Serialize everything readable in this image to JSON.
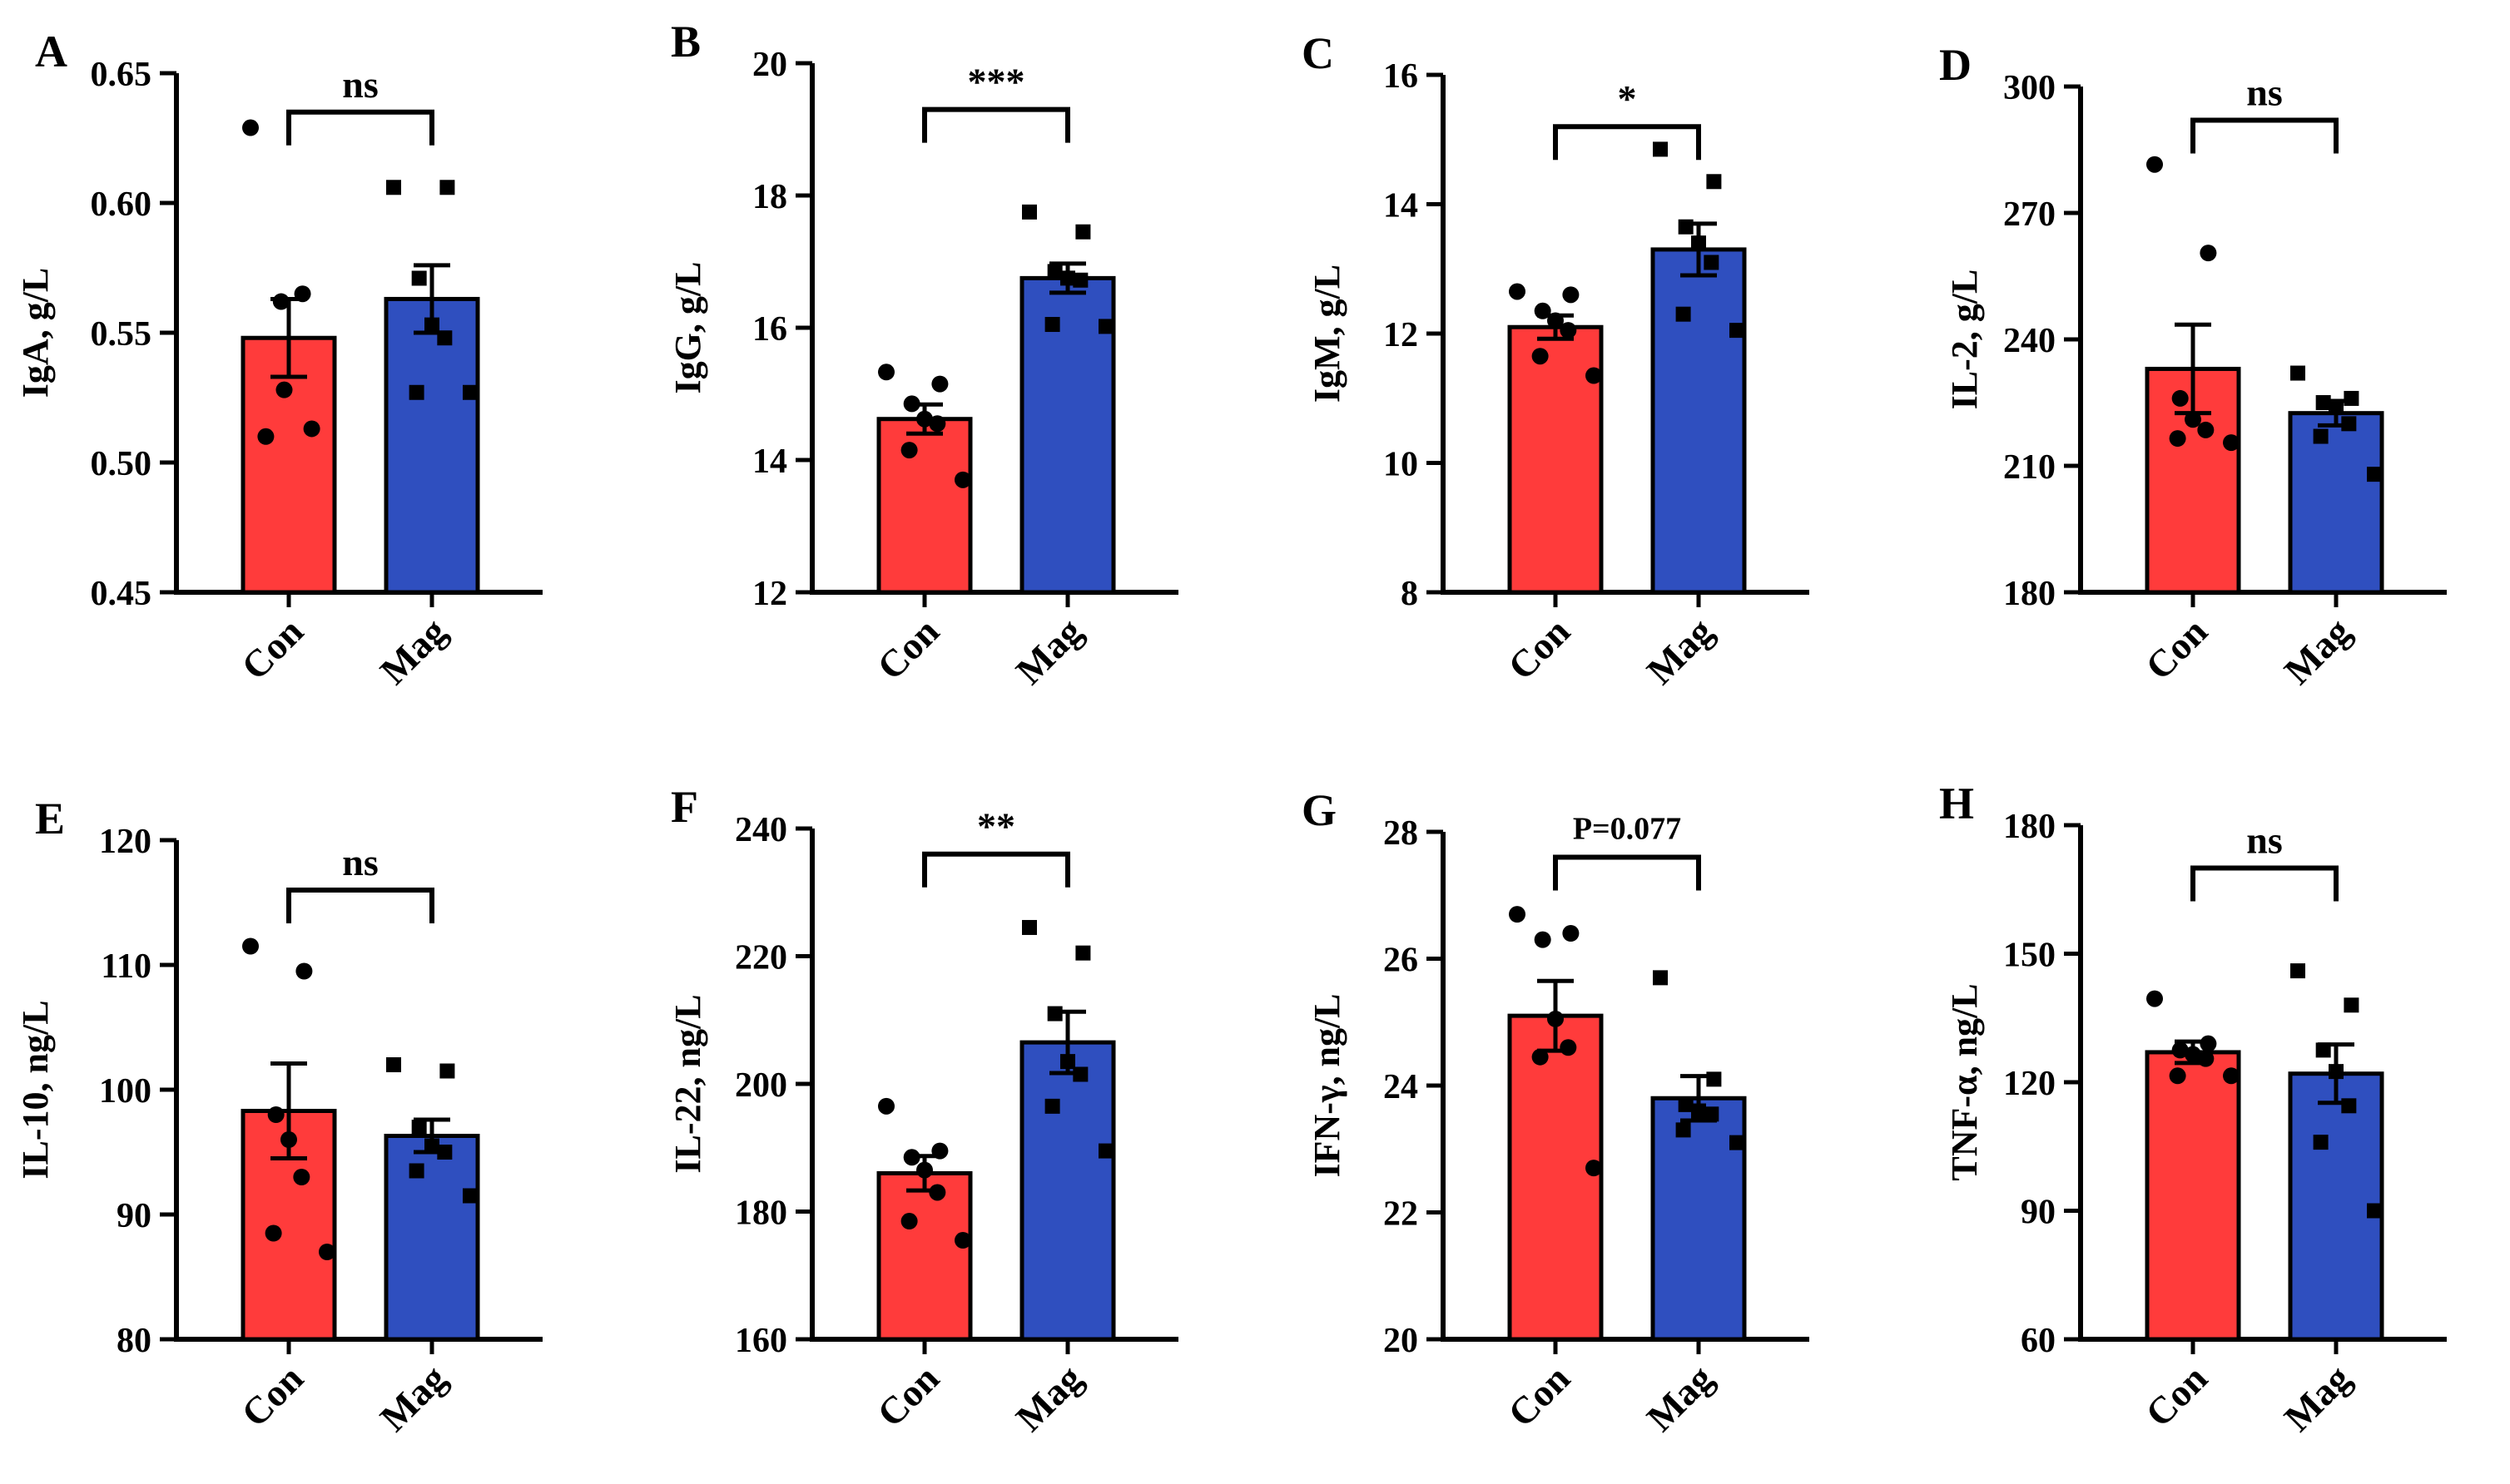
{
  "colors": {
    "con": "#FF3B3B",
    "mag": "#2F4FBF",
    "axis": "#000000"
  },
  "chart_data": [
    {
      "type": "bar",
      "panel": "A",
      "title": "",
      "ylabel": "IgA, g/L",
      "categories": [
        "Con",
        "Mag"
      ],
      "values": [
        0.548,
        0.563
      ],
      "sem": [
        0.015,
        0.013
      ],
      "points": [
        [
          0.629,
          0.565,
          0.562,
          0.528,
          0.513,
          0.51
        ],
        [
          0.606,
          0.606,
          0.571,
          0.553,
          0.548,
          0.527,
          0.527
        ]
      ],
      "ylim": [
        0.45,
        0.65
      ],
      "yticks": [
        "0.45",
        "0.50",
        "0.55",
        "0.60",
        "0.65"
      ],
      "significance": "ns",
      "sig_top": 0.635
    },
    {
      "type": "bar",
      "panel": "B",
      "title": "",
      "ylabel": "IgG, g/L",
      "categories": [
        "Con",
        "Mag"
      ],
      "values": [
        14.62,
        16.75
      ],
      "sem": [
        0.22,
        0.22
      ],
      "points": [
        [
          15.33,
          15.15,
          14.85,
          14.62,
          14.55,
          14.15,
          13.7
        ],
        [
          17.75,
          17.45,
          16.85,
          16.75,
          16.72,
          16.05,
          16.02
        ]
      ],
      "ylim": [
        12,
        20
      ],
      "yticks": [
        "12",
        "14",
        "16",
        "18",
        "20"
      ],
      "significance": "***",
      "sig_top": 19.3
    },
    {
      "type": "bar",
      "panel": "C",
      "title": "",
      "ylabel": "IgM, g/L",
      "categories": [
        "Con",
        "Mag"
      ],
      "values": [
        12.1,
        13.3
      ],
      "sem": [
        0.18,
        0.4
      ],
      "points": [
        [
          12.65,
          12.6,
          12.35,
          12.2,
          12.05,
          11.65,
          11.35
        ],
        [
          14.85,
          14.35,
          13.65,
          13.4,
          13.1,
          12.3,
          12.05
        ]
      ],
      "ylim": [
        8,
        16
      ],
      "yticks": [
        "8",
        "10",
        "12",
        "14",
        "16"
      ],
      "significance": "*",
      "sig_top": 15.2
    },
    {
      "type": "bar",
      "panel": "D",
      "title": "",
      "ylabel": "IL-2, g/L",
      "categories": [
        "Con",
        "Mag"
      ],
      "values": [
        233,
        222.5
      ],
      "sem": [
        10.5,
        2.9
      ],
      "points": [
        [
          281.5,
          260.5,
          226,
          221,
          218.5,
          216.5,
          215.5
        ],
        [
          232,
          226,
          225,
          224,
          220,
          217,
          208
        ]
      ],
      "ylim": [
        180,
        300
      ],
      "yticks": [
        "180",
        "210",
        "240",
        "270",
        "300"
      ],
      "significance": "ns",
      "sig_top": 292
    },
    {
      "type": "bar",
      "panel": "E",
      "title": "",
      "ylabel": "IL-10, ng/L",
      "categories": [
        "Con",
        "Mag"
      ],
      "values": [
        98.3,
        96.3
      ],
      "sem": [
        3.8,
        1.3
      ],
      "points": [
        [
          111.5,
          109.5,
          98,
          96,
          93,
          88.5,
          87
        ],
        [
          102,
          101.5,
          97,
          95.5,
          95,
          93.5,
          91.5
        ]
      ],
      "ylim": [
        80,
        120
      ],
      "yticks": [
        "80",
        "90",
        "100",
        "110",
        "120"
      ],
      "significance": "ns",
      "sig_top": 116
    },
    {
      "type": "bar",
      "panel": "F",
      "title": "",
      "ylabel": "IL-22, ng/L",
      "categories": [
        "Con",
        "Mag"
      ],
      "values": [
        186,
        206.5
      ],
      "sem": [
        2.7,
        4.8
      ],
      "points": [
        [
          196.5,
          189.5,
          188.5,
          186.5,
          183,
          178.5,
          175.5
        ],
        [
          224.5,
          220.5,
          211,
          203.5,
          201.5,
          196.5,
          189.5
        ]
      ],
      "ylim": [
        160,
        240
      ],
      "yticks": [
        "160",
        "180",
        "200",
        "220",
        "240"
      ],
      "significance": "**",
      "sig_top": 236
    },
    {
      "type": "bar",
      "panel": "G",
      "title": "",
      "ylabel": "IFN-γ, ng/L",
      "categories": [
        "Con",
        "Mag"
      ],
      "values": [
        25.1,
        23.8
      ],
      "sem": [
        0.55,
        0.35
      ],
      "points": [
        [
          26.7,
          26.4,
          26.3,
          25.05,
          24.6,
          24.45,
          22.7
        ],
        [
          25.7,
          24.1,
          23.7,
          23.6,
          23.55,
          23.3,
          23.1
        ]
      ],
      "ylim": [
        20,
        28
      ],
      "yticks": [
        "20",
        "22",
        "24",
        "26",
        "28"
      ],
      "significance": "P=0.077",
      "sig_top": 27.6
    },
    {
      "type": "bar",
      "panel": "H",
      "title": "",
      "ylabel": "TNF-α, ng/L",
      "categories": [
        "Con",
        "Mag"
      ],
      "values": [
        127,
        122
      ],
      "sem": [
        2.5,
        6.8
      ],
      "points": [
        [
          139.5,
          129,
          127.5,
          126.5,
          125.5,
          121.5,
          121.5
        ],
        [
          146,
          138,
          127.5,
          122.5,
          114.5,
          106,
          90
        ]
      ],
      "ylim": [
        60,
        180
      ],
      "yticks": [
        "60",
        "90",
        "120",
        "150",
        "180"
      ],
      "significance": "ns",
      "sig_top": 170
    }
  ]
}
